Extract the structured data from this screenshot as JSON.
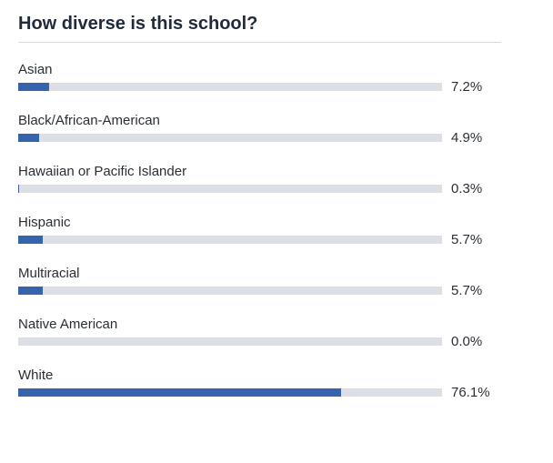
{
  "header": {
    "title": "How diverse is this school?"
  },
  "colors": {
    "bar_fill": "#3564ad",
    "bar_track": "#dcdfe6",
    "title_text": "#1f2b3a"
  },
  "chart_data": {
    "type": "bar",
    "orientation": "horizontal",
    "title": "How diverse is this school?",
    "xlim": [
      0,
      100
    ],
    "grid": false,
    "categories": [
      "Asian",
      "Black/African-American",
      "Hawaiian or Pacific Islander",
      "Hispanic",
      "Multiracial",
      "Native American",
      "White"
    ],
    "values": [
      7.2,
      4.9,
      0.3,
      5.7,
      5.7,
      0.0,
      76.1
    ],
    "value_labels": [
      "7.2%",
      "4.9%",
      "0.3%",
      "5.7%",
      "5.7%",
      "0.0%",
      "76.1%"
    ]
  }
}
